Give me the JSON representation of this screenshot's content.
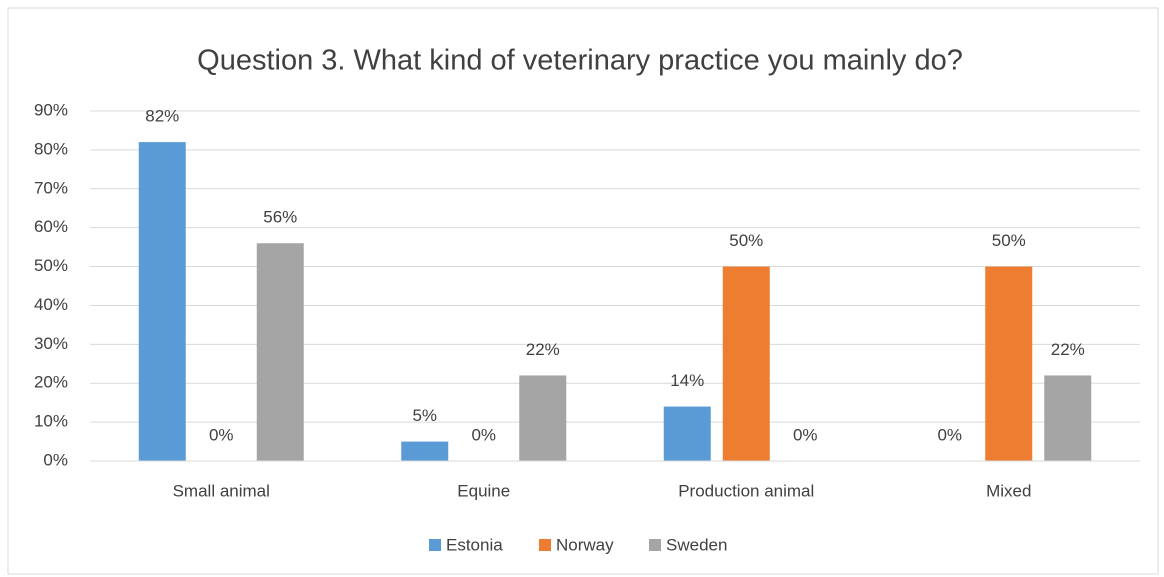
{
  "chart_data": {
    "type": "bar",
    "title": "Question 3. What kind of veterinary practice you mainly do?",
    "categories": [
      "Small animal",
      "Equine",
      "Production animal",
      "Mixed"
    ],
    "series": [
      {
        "name": "Estonia",
        "color": "#5b9bd5",
        "values": [
          82,
          5,
          14,
          0
        ],
        "value_labels": [
          "82%",
          "5%",
          "14%",
          "0%"
        ]
      },
      {
        "name": "Norway",
        "color": "#ed7d31",
        "values": [
          0,
          0,
          50,
          50
        ],
        "value_labels": [
          "0%",
          "0%",
          "50%",
          "50%"
        ]
      },
      {
        "name": "Sweden",
        "color": "#a5a5a5",
        "values": [
          56,
          22,
          0,
          22
        ],
        "value_labels": [
          "56%",
          "22%",
          "0%",
          "22%"
        ]
      }
    ],
    "ylim": [
      0,
      90
    ],
    "yticks": [
      {
        "value": 0,
        "label": "0%"
      },
      {
        "value": 10,
        "label": "10%"
      },
      {
        "value": 20,
        "label": "20%"
      },
      {
        "value": 30,
        "label": "30%"
      },
      {
        "value": 40,
        "label": "40%"
      },
      {
        "value": 50,
        "label": "50%"
      },
      {
        "value": 60,
        "label": "60%"
      },
      {
        "value": 70,
        "label": "70%"
      },
      {
        "value": 80,
        "label": "80%"
      },
      {
        "value": 90,
        "label": "90%"
      }
    ],
    "grid": true,
    "legend": "bottom"
  }
}
